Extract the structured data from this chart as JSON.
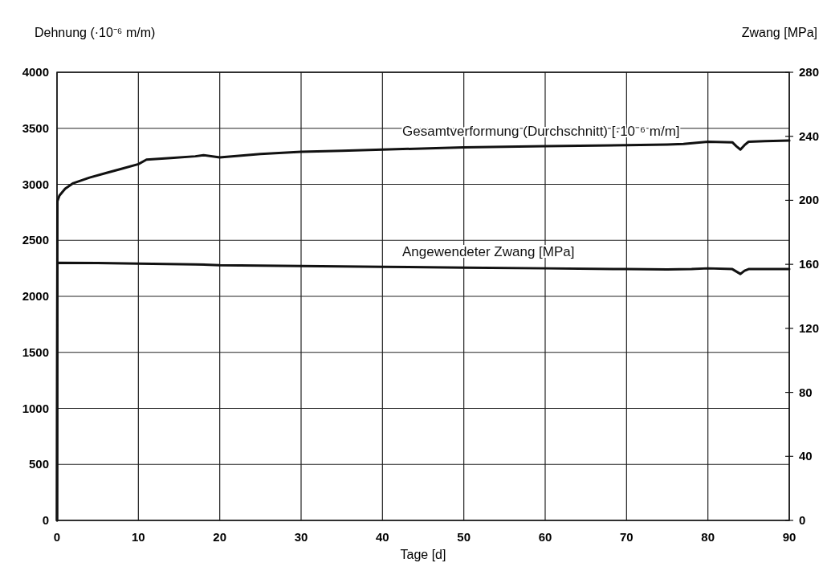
{
  "chart_data": {
    "type": "line",
    "xlabel": "Tage [d]",
    "ylabel": "Dehnung (·10⁻⁶ m/m)",
    "y2label": "Zwang [MPa]",
    "xlim": [
      0,
      90
    ],
    "xticks": [
      0,
      10,
      20,
      30,
      40,
      50,
      60,
      70,
      80,
      90
    ],
    "ylim": [
      0,
      4000
    ],
    "yticks": [
      0,
      500,
      1000,
      1500,
      2000,
      2500,
      3000,
      3500,
      4000
    ],
    "y2lim": [
      0,
      280
    ],
    "y2ticks": [
      0,
      40,
      80,
      120,
      160,
      200,
      240,
      280
    ],
    "grid": true,
    "line_style": "solid",
    "series": [
      {
        "name": "Gesamtverformung (Durchschnitt) [·10⁻⁶ m/m]",
        "color": "#111111",
        "x": [
          0,
          0.05,
          0.3,
          1,
          2,
          4,
          6,
          8,
          10,
          11,
          14,
          17,
          18,
          20,
          25,
          30,
          35,
          40,
          50,
          60,
          70,
          75,
          77,
          80,
          83,
          83.5,
          84,
          84.5,
          85,
          87,
          90
        ],
        "values": [
          0,
          2850,
          2900,
          2960,
          3010,
          3060,
          3100,
          3140,
          3180,
          3220,
          3235,
          3250,
          3260,
          3240,
          3270,
          3290,
          3300,
          3310,
          3330,
          3340,
          3350,
          3355,
          3360,
          3380,
          3375,
          3340,
          3310,
          3350,
          3380,
          3385,
          3390
        ]
      },
      {
        "name": "Angewendeter Zwang [MPa]",
        "color": "#111111",
        "axis": "y2",
        "x": [
          0,
          0.05,
          5,
          10,
          17,
          20,
          30,
          40,
          50,
          60,
          70,
          75,
          78,
          80,
          83,
          83.5,
          84,
          84.5,
          85,
          87,
          90
        ],
        "values": [
          0,
          161,
          160.8,
          160.5,
          160,
          159.5,
          159,
          158.5,
          158,
          157.5,
          157,
          156.8,
          157,
          157.5,
          157,
          155.5,
          154,
          156,
          157,
          157,
          157
        ]
      }
    ]
  }
}
